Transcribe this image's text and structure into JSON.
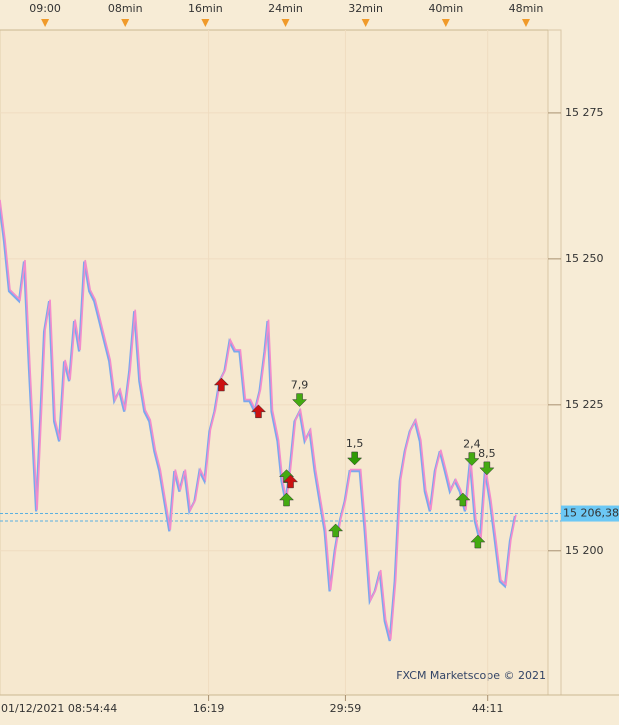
{
  "chart_data": {
    "type": "line",
    "footer": "FXCM Marketscope © 2021",
    "xlim": [
      -4.5,
      50.2
    ],
    "ylim": [
      15175.3,
      15289.2
    ],
    "xticks_top": [
      {
        "value": 0,
        "label": "09:00"
      },
      {
        "value": 8,
        "label": "08min"
      },
      {
        "value": 16,
        "label": "16min"
      },
      {
        "value": 24,
        "label": "24min"
      },
      {
        "value": 32,
        "label": "32min"
      },
      {
        "value": 40,
        "label": "40min"
      },
      {
        "value": 48,
        "label": "48min"
      }
    ],
    "xticks_bottom": [
      {
        "value": -5.27,
        "label": "01/12/2021 08:54:44"
      },
      {
        "value": 16.32,
        "label": "16:19"
      },
      {
        "value": 29.98,
        "label": "29:59"
      },
      {
        "value": 44.18,
        "label": "44:11"
      }
    ],
    "yticks": [
      {
        "value": 15200,
        "label": "15 200"
      },
      {
        "value": 15225,
        "label": "15 225"
      },
      {
        "value": 15250,
        "label": "15 250"
      },
      {
        "value": 15275,
        "label": "15 275"
      }
    ],
    "grid": true,
    "x": [
      -4.5,
      -4,
      -3.5,
      -2.5,
      -2,
      -1.5,
      -0.8,
      0,
      0.5,
      1,
      1.5,
      2,
      2.5,
      3,
      3.5,
      4,
      4.5,
      5,
      5.5,
      6,
      6.5,
      7,
      7.5,
      8,
      8.5,
      9,
      9.5,
      10,
      10.5,
      11,
      11.5,
      12,
      12.5,
      13,
      13.5,
      14,
      14.5,
      15,
      15.5,
      16,
      16.5,
      17,
      17.5,
      18,
      18.5,
      19,
      19.5,
      20,
      20.5,
      21,
      21.5,
      22,
      22.3,
      22.7,
      23.3,
      23.7,
      24.1,
      24.5,
      25,
      25.5,
      26,
      26.5,
      27,
      27.5,
      28,
      28.5,
      29,
      29.5,
      30,
      30.5,
      31,
      31.5,
      32,
      32.5,
      33,
      33.5,
      34,
      34.5,
      35,
      35.5,
      36,
      36.5,
      37,
      37.5,
      38,
      38.5,
      39,
      39.5,
      40,
      40.5,
      41,
      41.5,
      42,
      42.5,
      43,
      43.5,
      44,
      44.5,
      45,
      45.5,
      46,
      46.5,
      47
    ],
    "series": [
      {
        "name": "Price",
        "color": "#f28ccc",
        "values": [
          15260.1,
          15253.3,
          15244.7,
          15243.0,
          15249.8,
          15231.0,
          15207.0,
          15237.8,
          15243.0,
          15222.4,
          15219.0,
          15232.7,
          15229.3,
          15239.6,
          15234.4,
          15249.8,
          15244.7,
          15243.0,
          15239.6,
          15236.1,
          15232.7,
          15225.9,
          15227.6,
          15224.1,
          15231.0,
          15241.3,
          15229.3,
          15224.1,
          15222.4,
          15217.3,
          15213.9,
          15208.7,
          15203.6,
          15213.9,
          15210.4,
          15213.9,
          15207.0,
          15208.7,
          15213.9,
          15212.2,
          15220.7,
          15224.1,
          15229.3,
          15231.0,
          15236.1,
          15234.4,
          15234.4,
          15225.9,
          15225.9,
          15224.1,
          15227.6,
          15234.4,
          15239.6,
          15224.1,
          15219.0,
          15212.2,
          15208.7,
          15213.9,
          15222.4,
          15224.1,
          15219.0,
          15220.7,
          15213.9,
          15208.7,
          15203.6,
          15193.3,
          15200.2,
          15205.3,
          15208.7,
          15213.9,
          15213.9,
          15213.9,
          15203.6,
          15191.6,
          15193.3,
          15196.7,
          15188.2,
          15184.8,
          15195.0,
          15212.2,
          15217.3,
          15220.7,
          15222.4,
          15219.0,
          15210.4,
          15207.0,
          15213.9,
          15217.3,
          15213.9,
          15210.4,
          15212.2,
          15210.4,
          15207.0,
          15215.6,
          15205.3,
          15201.9,
          15213.9,
          15208.7,
          15201.9,
          15195.0,
          15194.2,
          15201.9,
          15206.2
        ]
      }
    ],
    "reference_lines": [
      {
        "value": 15206.38,
        "label": "15 206,38"
      },
      {
        "value": 15205.1
      }
    ],
    "signals": [
      {
        "x": 17.6,
        "price": 15228.4,
        "direction": "up",
        "color": "#cc1111"
      },
      {
        "x": 21.3,
        "price": 15223.8,
        "direction": "up",
        "color": "#cc1111"
      },
      {
        "x": 24.1,
        "price": 15212.7,
        "direction": "up",
        "color": "#44aa11"
      },
      {
        "x": 24.1,
        "price": 15208.7,
        "direction": "up",
        "color": "#44aa11"
      },
      {
        "x": 24.5,
        "price": 15211.8,
        "direction": "up",
        "color": "#cc1111"
      },
      {
        "x": 25.4,
        "price": 15225.9,
        "direction": "down",
        "color": "#44aa11",
        "label": "7,9"
      },
      {
        "x": 30.9,
        "price": 15215.9,
        "direction": "down",
        "color": "#2f9a05",
        "label": "1,5"
      },
      {
        "x": 29.0,
        "price": 15203.4,
        "direction": "up",
        "color": "#44aa11"
      },
      {
        "x": 41.7,
        "price": 15208.7,
        "direction": "up",
        "color": "#44aa11"
      },
      {
        "x": 42.6,
        "price": 15215.8,
        "direction": "down",
        "color": "#44aa11",
        "label": "2,4"
      },
      {
        "x": 44.1,
        "price": 15214.2,
        "direction": "down",
        "color": "#44aa11",
        "label": "8,5"
      },
      {
        "x": 43.2,
        "price": 15201.5,
        "direction": "up",
        "color": "#44aa11"
      }
    ]
  }
}
